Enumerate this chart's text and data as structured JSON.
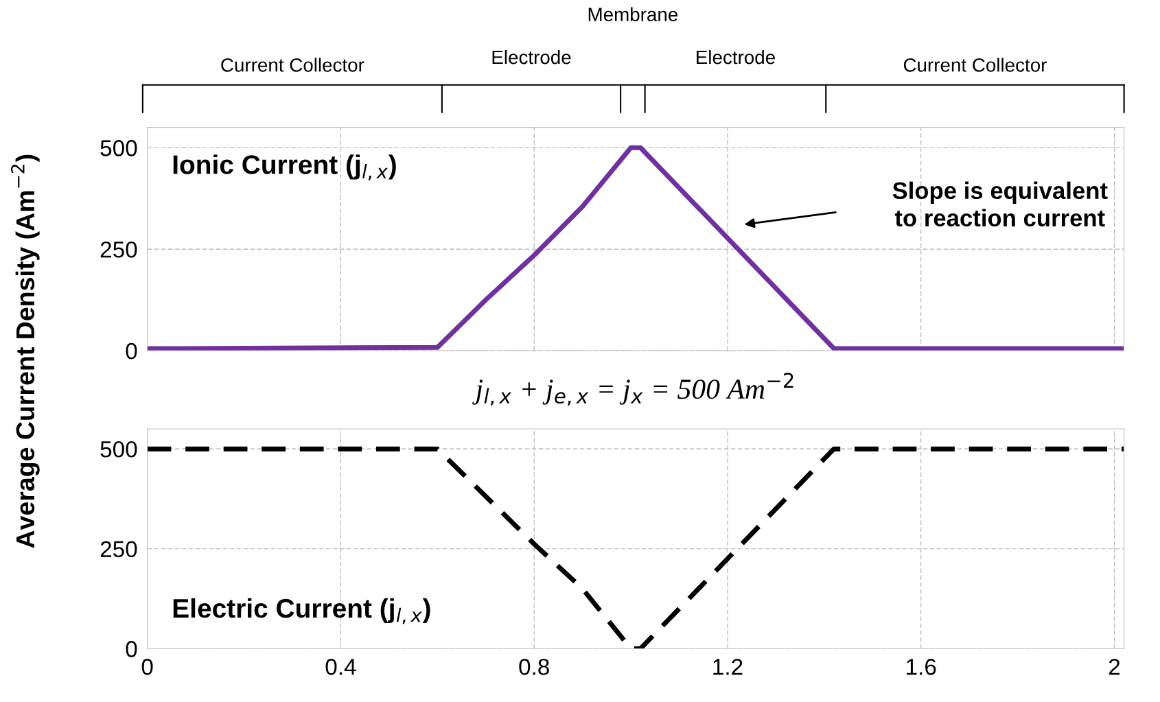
{
  "chart_data": [
    {
      "type": "line",
      "ylabel": "Average Current Density (Am$^{−2}$)",
      "xlim": [
        0,
        2.02
      ],
      "ylim": [
        0,
        550
      ],
      "xticks": [
        0,
        0.4,
        0.8,
        1.2,
        1.6,
        2
      ],
      "yticks": [
        0,
        250,
        500
      ],
      "grid": true,
      "tick_labels": "y",
      "marker": "none",
      "series": [
        {
          "color": "#7030a0",
          "line_style": "solid",
          "x": [
            0,
            0.6,
            0.7,
            0.8,
            0.9,
            1.0,
            1.02,
            1.42,
            2.02
          ],
          "values": [
            5,
            8,
            125,
            235,
            355,
            500,
            500,
            5,
            5
          ]
        }
      ],
      "annotations": [
        "Ionic Current (j$_{l,x}$)",
        "Slope is equivalent\nto reaction current",
        "Membrane",
        "Current Collector",
        "Electrode",
        "Electrode",
        "Current Collector"
      ]
    },
    {
      "type": "line",
      "xlim": [
        0,
        2.02
      ],
      "ylim": [
        0,
        550
      ],
      "xticks": [
        0,
        0.4,
        0.8,
        1.2,
        1.6,
        2
      ],
      "yticks": [
        0,
        250,
        500
      ],
      "grid": true,
      "marker": "none",
      "series": [
        {
          "color": "#000000",
          "line_style": "dashed",
          "x": [
            0,
            0.6,
            0.8,
            0.9,
            1.0,
            1.02,
            1.42,
            2.02
          ],
          "values": [
            500,
            500,
            262,
            150,
            0,
            0,
            500,
            500
          ]
        }
      ],
      "annotations": [
        "Electric Current (j$_{l,x}$)",
        "j$_{l,x}$ + j$_{e,x}$ = j$_{x}$ = 500 Am$^{−2}$"
      ]
    }
  ]
}
